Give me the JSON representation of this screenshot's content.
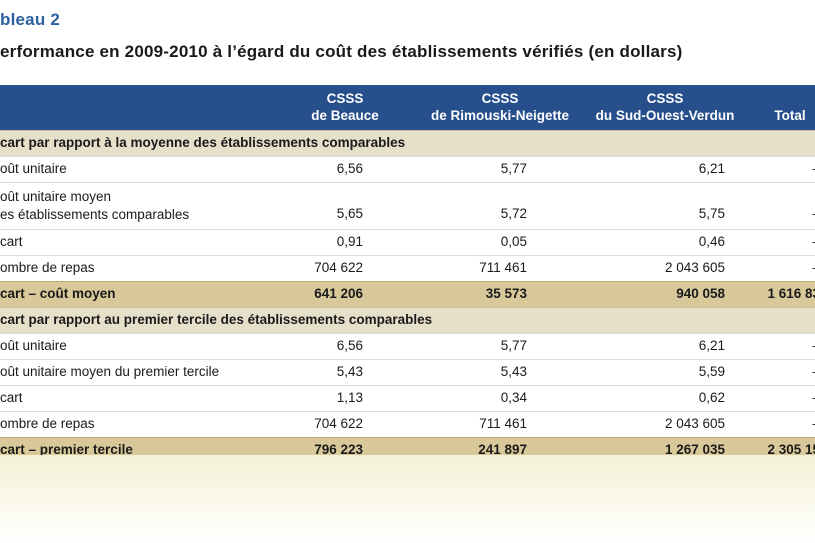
{
  "caption": "bleau 2",
  "title": "erformance en 2009-2010 à l’égard du coût des établissements vérifiés (en dollars)",
  "headers": [
    {
      "line1": "CSSS",
      "line2": "de Beauce"
    },
    {
      "line1": "CSSS",
      "line2": "de Rimouski-Neigette"
    },
    {
      "line1": "CSSS",
      "line2": "du Sud-Ouest-Verdun"
    },
    {
      "line1": "",
      "line2": "Total"
    }
  ],
  "section1": {
    "title": "cart par rapport à la moyenne des établissements comparables",
    "rows": [
      {
        "label": "oût unitaire",
        "v1": "6,56",
        "v2": "5,77",
        "v3": "6,21",
        "v4": "–"
      },
      {
        "label1": "oût unitaire moyen",
        "label2": "es établissements comparables",
        "v1": "5,65",
        "v2": "5,72",
        "v3": "5,75",
        "v4": "–"
      },
      {
        "label": "cart",
        "v1": "0,91",
        "v2": "0,05",
        "v3": "0,46",
        "v4": "–"
      },
      {
        "label": "ombre de repas",
        "v1": "704 622",
        "v2": "711 461",
        "v3": "2 043 605",
        "v4": "–"
      }
    ],
    "total": {
      "label": "cart – coût moyen",
      "v1": "641 206",
      "v2": "35 573",
      "v3": "940 058",
      "v4": "1 616 83"
    }
  },
  "section2": {
    "title": "cart par rapport au premier tercile des établissements comparables",
    "rows": [
      {
        "label": "oût unitaire",
        "v1": "6,56",
        "v2": "5,77",
        "v3": "6,21",
        "v4": "–"
      },
      {
        "label": "oût unitaire moyen du premier tercile",
        "v1": "5,43",
        "v2": "5,43",
        "v3": "5,59",
        "v4": "–"
      },
      {
        "label": "cart",
        "v1": "1,13",
        "v2": "0,34",
        "v3": "0,62",
        "v4": "–"
      },
      {
        "label": "ombre de repas",
        "v1": "704 622",
        "v2": "711 461",
        "v3": "2 043 605",
        "v4": "–"
      }
    ],
    "total": {
      "label": "cart – premier tercile",
      "v1": "796 223",
      "v2": "241 897",
      "v3": "1 267 035",
      "v4": "2 305 15"
    }
  }
}
